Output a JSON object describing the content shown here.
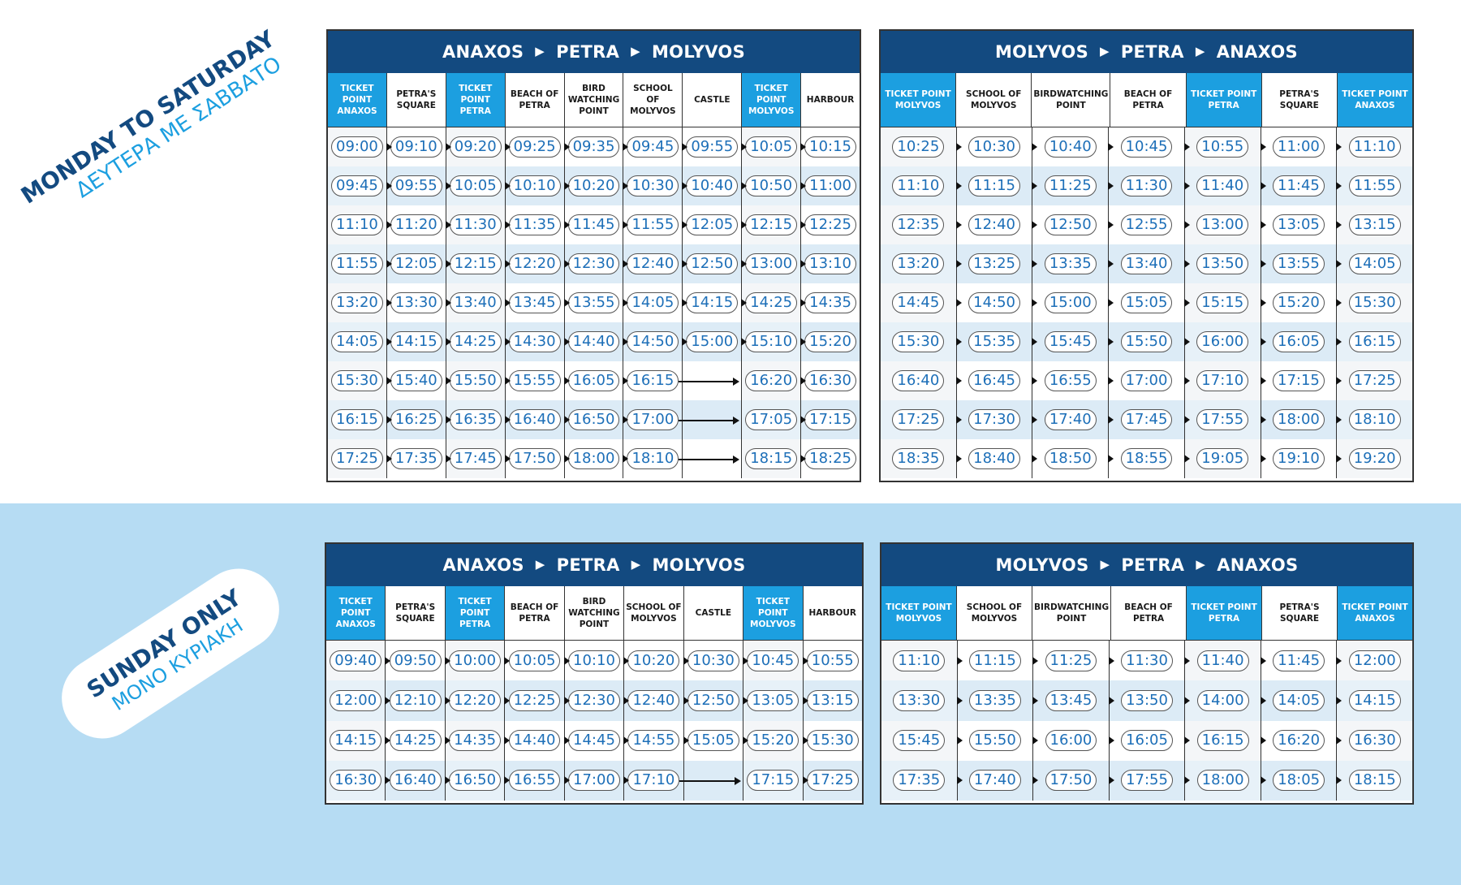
{
  "labels": {
    "weekday_en": "MONDAY TO SATURDAY",
    "weekday_gr": "ΔΕΥΤΕΡΑ ΜΕ ΣΑΒΒΑΤΟ",
    "sunday_en": "SUNDAY ONLY",
    "sunday_gr": "ΜΟΝΟ ΚΥΡΙΑΚΗ"
  },
  "colors": {
    "navy": "#134a80",
    "accent": "#1c9fe0",
    "light_band": "#b6dcf3"
  },
  "tables": {
    "wk_out": {
      "title": [
        "ANAXOS",
        "PETRA",
        "MOLYVOS"
      ],
      "headers": [
        "TICKET POINT ANAXOS",
        "PETRA'S SQUARE",
        "TICKET POINT PETRA",
        "BEACH OF PETRA",
        "BIRD WATCHING POINT",
        "SCHOOL OF MOLYVOS",
        "CASTLE",
        "TICKET POINT MOLYVOS",
        "HARBOUR"
      ],
      "tp": [
        0,
        2,
        7
      ],
      "rows": [
        [
          "09:00",
          "09:10",
          "09:20",
          "09:25",
          "09:35",
          "09:45",
          "09:55",
          "10:05",
          "10:15"
        ],
        [
          "09:45",
          "09:55",
          "10:05",
          "10:10",
          "10:20",
          "10:30",
          "10:40",
          "10:50",
          "11:00"
        ],
        [
          "11:10",
          "11:20",
          "11:30",
          "11:35",
          "11:45",
          "11:55",
          "12:05",
          "12:15",
          "12:25"
        ],
        [
          "11:55",
          "12:05",
          "12:15",
          "12:20",
          "12:30",
          "12:40",
          "12:50",
          "13:00",
          "13:10"
        ],
        [
          "13:20",
          "13:30",
          "13:40",
          "13:45",
          "13:55",
          "14:05",
          "14:15",
          "14:25",
          "14:35"
        ],
        [
          "14:05",
          "14:15",
          "14:25",
          "14:30",
          "14:40",
          "14:50",
          "15:00",
          "15:10",
          "15:20"
        ],
        [
          "15:30",
          "15:40",
          "15:50",
          "15:55",
          "16:05",
          "16:15",
          "",
          "16:20",
          "16:30"
        ],
        [
          "16:15",
          "16:25",
          "16:35",
          "16:40",
          "16:50",
          "17:00",
          "",
          "17:05",
          "17:15"
        ],
        [
          "17:25",
          "17:35",
          "17:45",
          "17:50",
          "18:00",
          "18:10",
          "",
          "18:15",
          "18:25"
        ]
      ]
    },
    "wk_ret": {
      "title": [
        "MOLYVOS",
        "PETRA",
        "ANAXOS"
      ],
      "headers": [
        "TICKET POINT MOLYVOS",
        "SCHOOL OF MOLYVOS",
        "BIRDWATCHING POINT",
        "BEACH OF PETRA",
        "TICKET POINT PETRA",
        "PETRA'S SQUARE",
        "TICKET POINT ANAXOS"
      ],
      "tp": [
        0,
        4,
        6
      ],
      "rows": [
        [
          "10:25",
          "10:30",
          "10:40",
          "10:45",
          "10:55",
          "11:00",
          "11:10"
        ],
        [
          "11:10",
          "11:15",
          "11:25",
          "11:30",
          "11:40",
          "11:45",
          "11:55"
        ],
        [
          "12:35",
          "12:40",
          "12:50",
          "12:55",
          "13:00",
          "13:05",
          "13:15"
        ],
        [
          "13:20",
          "13:25",
          "13:35",
          "13:40",
          "13:50",
          "13:55",
          "14:05"
        ],
        [
          "14:45",
          "14:50",
          "15:00",
          "15:05",
          "15:15",
          "15:20",
          "15:30"
        ],
        [
          "15:30",
          "15:35",
          "15:45",
          "15:50",
          "16:00",
          "16:05",
          "16:15"
        ],
        [
          "16:40",
          "16:45",
          "16:55",
          "17:00",
          "17:10",
          "17:15",
          "17:25"
        ],
        [
          "17:25",
          "17:30",
          "17:40",
          "17:45",
          "17:55",
          "18:00",
          "18:10"
        ],
        [
          "18:35",
          "18:40",
          "18:50",
          "18:55",
          "19:05",
          "19:10",
          "19:20"
        ]
      ]
    },
    "sun_out": {
      "title": [
        "ANAXOS",
        "PETRA",
        "MOLYVOS"
      ],
      "headers": [
        "TICKET POINT ANAXOS",
        "PETRA'S SQUARE",
        "TICKET POINT PETRA",
        "BEACH OF PETRA",
        "BIRD WATCHING POINT",
        "SCHOOL OF MOLYVOS",
        "CASTLE",
        "TICKET POINT MOLYVOS",
        "HARBOUR"
      ],
      "tp": [
        0,
        2,
        7
      ],
      "rows": [
        [
          "09:40",
          "09:50",
          "10:00",
          "10:05",
          "10:10",
          "10:20",
          "10:30",
          "10:45",
          "10:55"
        ],
        [
          "12:00",
          "12:10",
          "12:20",
          "12:25",
          "12:30",
          "12:40",
          "12:50",
          "13:05",
          "13:15"
        ],
        [
          "14:15",
          "14:25",
          "14:35",
          "14:40",
          "14:45",
          "14:55",
          "15:05",
          "15:20",
          "15:30"
        ],
        [
          "16:30",
          "16:40",
          "16:50",
          "16:55",
          "17:00",
          "17:10",
          "",
          "17:15",
          "17:25"
        ]
      ]
    },
    "sun_ret": {
      "title": [
        "MOLYVOS",
        "PETRA",
        "ANAXOS"
      ],
      "headers": [
        "TICKET POINT MOLYVOS",
        "SCHOOL OF MOLYVOS",
        "BIRDWATCHING POINT",
        "BEACH OF PETRA",
        "TICKET POINT PETRA",
        "PETRA'S SQUARE",
        "TICKET POINT ANAXOS"
      ],
      "tp": [
        0,
        4,
        6
      ],
      "rows": [
        [
          "11:10",
          "11:15",
          "11:25",
          "11:30",
          "11:40",
          "11:45",
          "12:00"
        ],
        [
          "13:30",
          "13:35",
          "13:45",
          "13:50",
          "14:00",
          "14:05",
          "14:15"
        ],
        [
          "15:45",
          "15:50",
          "16:00",
          "16:05",
          "16:15",
          "16:20",
          "16:30"
        ],
        [
          "17:35",
          "17:40",
          "17:50",
          "17:55",
          "18:00",
          "18:05",
          "18:15"
        ]
      ]
    }
  }
}
